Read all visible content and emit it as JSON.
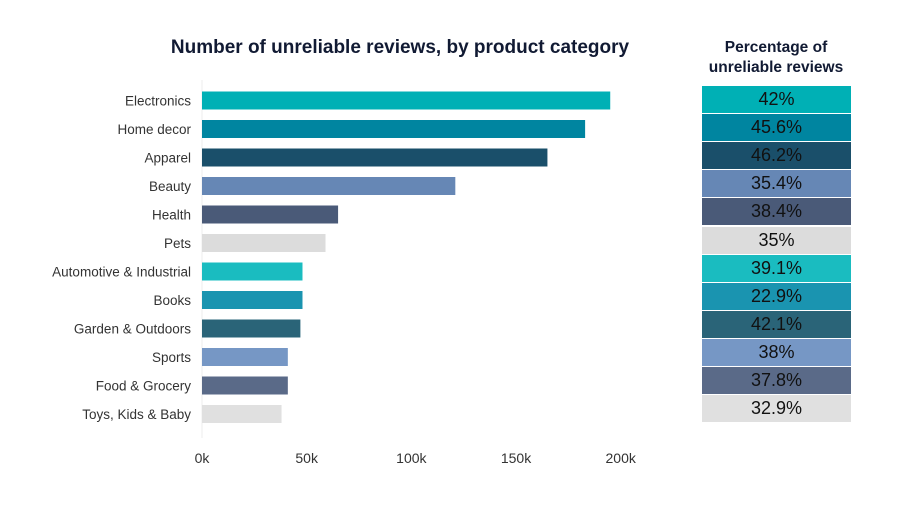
{
  "chart_data": [
    {
      "type": "bar",
      "orientation": "horizontal",
      "title": "Number of unreliable reviews, by product category",
      "categories": [
        "Electronics",
        "Home decor",
        "Apparel",
        "Beauty",
        "Health",
        "Pets",
        "Automotive & Industrial",
        "Books",
        "Garden & Outdoors",
        "Sports",
        "Food & Grocery",
        "Toys, Kids & Baby"
      ],
      "values": [
        195000,
        183000,
        165000,
        121000,
        65000,
        59000,
        48000,
        48000,
        47000,
        41000,
        41000,
        38000
      ],
      "colors": [
        "#00b0b5",
        "#0085a0",
        "#1a4f6a",
        "#6687b5",
        "#4a5a78",
        "#dcdcdc",
        "#1abcc0",
        "#1a94b0",
        "#2a6478",
        "#7697c5",
        "#5a6a88",
        "#e0e0e0"
      ],
      "xlim": [
        0,
        200000
      ],
      "xticks": [
        0,
        50000,
        100000,
        150000,
        200000
      ],
      "xtick_labels": [
        "0k",
        "50k",
        "100k",
        "150k",
        "200k"
      ],
      "grid": false
    },
    {
      "type": "table",
      "title": "Percentage of unreliable reviews",
      "values": [
        "42%",
        "45.6%",
        "46.2%",
        "35.4%",
        "38.4%",
        "35%",
        "39.1%",
        "22.9%",
        "42.1%",
        "38%",
        "37.8%",
        "32.9%"
      ]
    }
  ]
}
